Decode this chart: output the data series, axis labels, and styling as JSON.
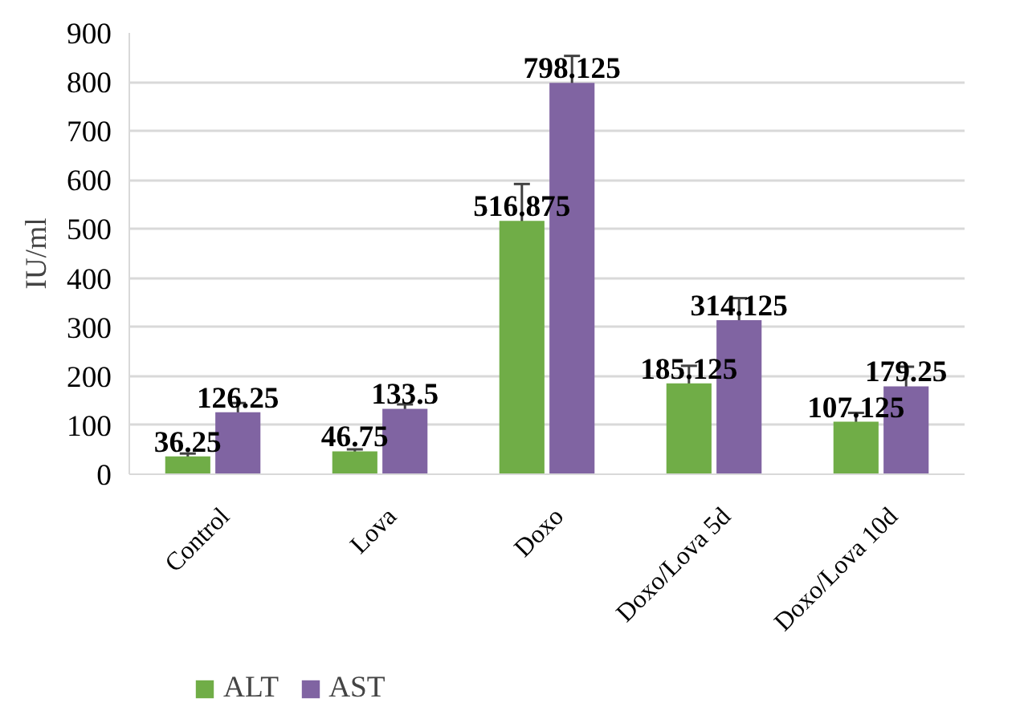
{
  "chart_data": {
    "type": "bar",
    "ylabel": "IU/ml",
    "categories": [
      "Control",
      "Lova",
      "Doxo",
      "Doxo/Lova 5d",
      "Doxo/Lova 10d"
    ],
    "series": [
      {
        "name": "ALT",
        "color": "#70ad47",
        "values": [
          36.25,
          46.75,
          516.875,
          185.125,
          107.125
        ],
        "errors": [
          6,
          4,
          75,
          36,
          18
        ]
      },
      {
        "name": "AST",
        "color": "#8064a2",
        "values": [
          126.25,
          133.5,
          798.125,
          314.125,
          179.25
        ],
        "errors": [
          19,
          9,
          55,
          45,
          40
        ]
      }
    ],
    "ylim": [
      0,
      900
    ],
    "yticks": [
      0,
      100,
      200,
      300,
      400,
      500,
      600,
      700,
      800,
      900
    ],
    "grid": "y",
    "legend": "bottom",
    "data_labels": true
  }
}
